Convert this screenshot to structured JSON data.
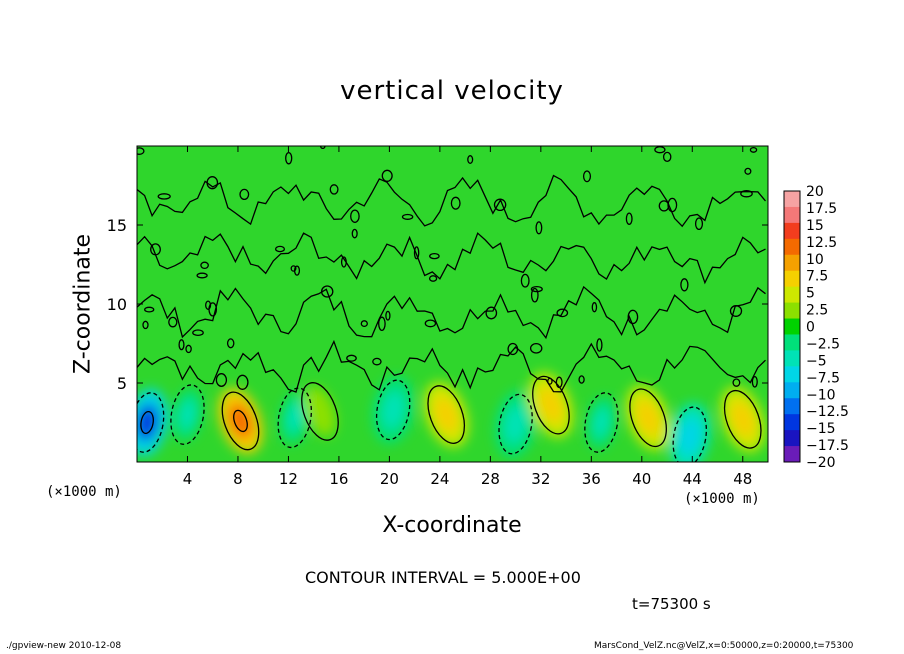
{
  "chart_data": {
    "type": "heatmap",
    "title": "vertical velocity",
    "xlabel": "X-coordinate",
    "ylabel": "Z-coordinate",
    "x_unit_left": "(×1000 m)",
    "x_unit_right": "(×1000 m)",
    "xlim": [
      0,
      50
    ],
    "ylim": [
      0,
      20
    ],
    "x_ticks": [
      4,
      8,
      12,
      16,
      20,
      24,
      28,
      32,
      36,
      40,
      44,
      48
    ],
    "y_ticks": [
      5,
      10,
      15
    ],
    "colorbar_labels": [
      "20",
      "17.5",
      "15",
      "12.5",
      "10",
      "7.5",
      "5",
      "2.5",
      "0",
      "−2.5",
      "−5",
      "−7.5",
      "−10",
      "−12.5",
      "−15",
      "−17.5",
      "−20"
    ],
    "colorbar_values": [
      20,
      17.5,
      15,
      12.5,
      10,
      7.5,
      5,
      2.5,
      0,
      -2.5,
      -5,
      -7.5,
      -10,
      -12.5,
      -15,
      -17.5,
      -20
    ],
    "colorbar_colors": [
      "#f6a3a3",
      "#f47878",
      "#f23d1e",
      "#f46a00",
      "#f5a100",
      "#f5d000",
      "#cde800",
      "#8ce000",
      "#00d200",
      "#00e07a",
      "#00e2b6",
      "#00d6e6",
      "#00aef0",
      "#0070f0",
      "#0036e0",
      "#1a14c0",
      "#6a1cb8"
    ],
    "features": [
      {
        "x": 0.8,
        "z": 2.5,
        "value": -15
      },
      {
        "x": 4,
        "z": 3,
        "value": -4
      },
      {
        "x": 8.2,
        "z": 2.6,
        "value": 12
      },
      {
        "x": 12.5,
        "z": 2.8,
        "value": -4
      },
      {
        "x": 14.5,
        "z": 3.2,
        "value": 3
      },
      {
        "x": 20.3,
        "z": 3.3,
        "value": -6
      },
      {
        "x": 24.5,
        "z": 3.0,
        "value": 8
      },
      {
        "x": 30,
        "z": 2.4,
        "value": -6
      },
      {
        "x": 32.8,
        "z": 3.6,
        "value": 7
      },
      {
        "x": 36.8,
        "z": 2.5,
        "value": -4
      },
      {
        "x": 40.5,
        "z": 2.8,
        "value": 7
      },
      {
        "x": 43.8,
        "z": 1.6,
        "value": -7
      },
      {
        "x": 48,
        "z": 2.7,
        "value": 7
      }
    ]
  },
  "contour_interval": "CONTOUR INTERVAL = 5.000E+00",
  "time_label": "t=75300 s",
  "footer_left": "./gpview-new   2010-12-08",
  "footer_right": "MarsCond_VelZ.nc@VelZ,x=0:50000,z=0:20000,t=75300"
}
